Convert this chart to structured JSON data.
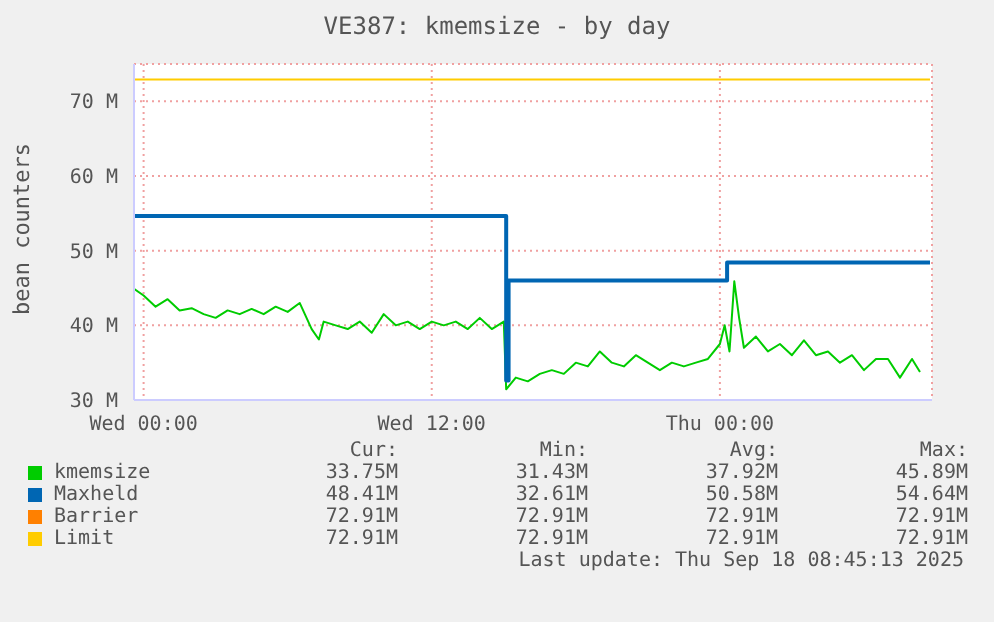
{
  "chart_data": {
    "type": "line",
    "title": "VE387: kmemsize - by day",
    "ylabel": "bean counters",
    "xlim": [
      "2025-09-16T23:36",
      "2025-09-18T08:50"
    ],
    "xticks": [
      {
        "value": "2025-09-17T00:00",
        "label": "Wed 00:00"
      },
      {
        "value": "2025-09-17T12:00",
        "label": "Wed 12:00"
      },
      {
        "value": "2025-09-18T00:00",
        "label": "Thu 00:00"
      }
    ],
    "ylim": [
      30,
      75
    ],
    "yticks": [
      {
        "value": 30,
        "label": "30 M"
      },
      {
        "value": 40,
        "label": "40 M"
      },
      {
        "value": 50,
        "label": "50 M"
      },
      {
        "value": 60,
        "label": "60 M"
      },
      {
        "value": 70,
        "label": "70 M"
      }
    ],
    "grid": true,
    "legend": "bottom",
    "marker": "none",
    "line_style": "solid",
    "series": [
      {
        "name": "kmemsize",
        "color": "#00cc00",
        "x": [
          "2025-09-16T23:36",
          "2025-09-17T00:00",
          "2025-09-17T00:30",
          "2025-09-17T01:00",
          "2025-09-17T01:30",
          "2025-09-17T02:00",
          "2025-09-17T02:30",
          "2025-09-17T03:00",
          "2025-09-17T03:30",
          "2025-09-17T04:00",
          "2025-09-17T04:30",
          "2025-09-17T05:00",
          "2025-09-17T05:30",
          "2025-09-17T06:00",
          "2025-09-17T06:30",
          "2025-09-17T07:00",
          "2025-09-17T07:18",
          "2025-09-17T07:30",
          "2025-09-17T08:00",
          "2025-09-17T08:30",
          "2025-09-17T09:00",
          "2025-09-17T09:30",
          "2025-09-17T10:00",
          "2025-09-17T10:30",
          "2025-09-17T11:00",
          "2025-09-17T11:30",
          "2025-09-17T12:00",
          "2025-09-17T12:30",
          "2025-09-17T13:00",
          "2025-09-17T13:30",
          "2025-09-17T14:00",
          "2025-09-17T14:30",
          "2025-09-17T15:00",
          "2025-09-17T15:06",
          "2025-09-17T15:30",
          "2025-09-17T16:00",
          "2025-09-17T16:30",
          "2025-09-17T17:00",
          "2025-09-17T17:30",
          "2025-09-17T18:00",
          "2025-09-17T18:30",
          "2025-09-17T19:00",
          "2025-09-17T19:30",
          "2025-09-17T20:00",
          "2025-09-17T20:30",
          "2025-09-17T21:00",
          "2025-09-17T21:30",
          "2025-09-17T22:00",
          "2025-09-17T22:30",
          "2025-09-17T23:00",
          "2025-09-17T23:30",
          "2025-09-18T00:00",
          "2025-09-18T00:12",
          "2025-09-18T00:24",
          "2025-09-18T00:36",
          "2025-09-18T00:48",
          "2025-09-18T01:00",
          "2025-09-18T01:30",
          "2025-09-18T02:00",
          "2025-09-18T02:30",
          "2025-09-18T03:00",
          "2025-09-18T03:30",
          "2025-09-18T04:00",
          "2025-09-18T04:30",
          "2025-09-18T05:00",
          "2025-09-18T05:30",
          "2025-09-18T06:00",
          "2025-09-18T06:30",
          "2025-09-18T07:00",
          "2025-09-18T07:30",
          "2025-09-18T08:00",
          "2025-09-18T08:20"
        ],
        "values": [
          44.9,
          44,
          42.5,
          43.5,
          42,
          42.3,
          41.5,
          41,
          42,
          41.5,
          42.2,
          41.5,
          42.5,
          41.8,
          43,
          39.5,
          38.1,
          40.5,
          40,
          39.5,
          40.5,
          39,
          41.5,
          40,
          40.5,
          39.5,
          40.5,
          40,
          40.5,
          39.5,
          41,
          39.5,
          40.5,
          31.43,
          33,
          32.5,
          33.5,
          34,
          33.5,
          35,
          34.5,
          36.5,
          35,
          34.5,
          36,
          35,
          34,
          35,
          34.5,
          35,
          35.5,
          37.5,
          40,
          36.5,
          45.89,
          41,
          37,
          38.5,
          36.5,
          37.5,
          36,
          38,
          36,
          36.5,
          35,
          36,
          34,
          35.5,
          35.5,
          33,
          35.5,
          33.75
        ]
      },
      {
        "name": "Maxheld",
        "color": "#0066b3",
        "type": "step",
        "x": [
          "2025-09-16T23:36",
          "2025-09-17T15:06",
          "2025-09-17T15:12",
          "2025-09-18T00:18",
          "2025-09-18T08:45"
        ],
        "values": [
          54.64,
          32.61,
          46,
          48.41,
          48.41
        ]
      },
      {
        "name": "Barrier",
        "color": "#ff8000"
      },
      {
        "name": "Limit",
        "color": "#ffcc00",
        "x": [
          "2025-09-16T23:36",
          "2025-09-18T08:45"
        ],
        "values": [
          72.91,
          72.91
        ]
      }
    ],
    "annotations": [
      "Cur:",
      "Min:",
      "Avg:",
      "Max:",
      "33.75M",
      "31.43M",
      "37.92M",
      "45.89M",
      "48.41M",
      "32.61M",
      "50.58M",
      "54.64M",
      "72.91M",
      "72.91M",
      "72.91M",
      "72.91M",
      "72.91M",
      "72.91M",
      "72.91M",
      "72.91M",
      "Last update: Thu Sep 18 08:45:13 2025"
    ]
  }
}
